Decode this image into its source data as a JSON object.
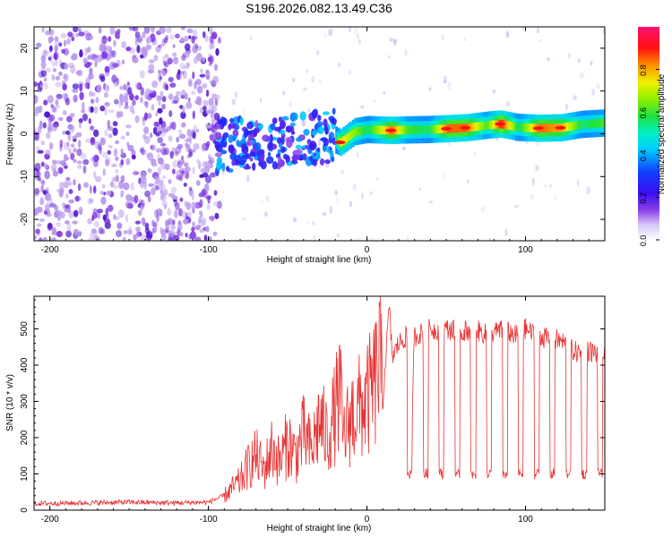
{
  "title": "S196.2026.082.13.49.C36",
  "colors": {
    "snr_line": "#e83232",
    "spec_weak": "#b898ec",
    "spec_mid": "#7a2ee0",
    "spec_strong": "#4a10cc"
  },
  "chart_data": [
    {
      "type": "heatmap",
      "title": "S196.2026.082.13.49.C36",
      "xlabel": "Height of straight line (km)",
      "ylabel": "Frequency (Hz)",
      "xlim": [
        -210,
        150
      ],
      "ylim": [
        -25,
        25
      ],
      "xticks": [
        -200,
        -100,
        0,
        100
      ],
      "yticks": [
        -20,
        -10,
        0,
        10,
        20
      ],
      "colorbar": {
        "label": "Normalized spectral amplitude",
        "range": [
          0,
          1
        ],
        "ticks": [
          0.0,
          0.2,
          0.4,
          0.6,
          0.8
        ],
        "tick_labels": [
          "0.0",
          "0.2",
          "0.4",
          "0.6",
          "0.8"
        ],
        "colormap": "rainbow (white → violet → blue → cyan → green → yellow → red → magenta)"
      },
      "ridge": [
        {
          "x": -95,
          "y": -3.0,
          "amp": 0.15
        },
        {
          "x": -80,
          "y": -4.0,
          "amp": 0.22
        },
        {
          "x": -70,
          "y": -5.0,
          "amp": 0.25
        },
        {
          "x": -60,
          "y": -3.5,
          "amp": 0.28
        },
        {
          "x": -50,
          "y": -2.0,
          "amp": 0.3
        },
        {
          "x": -40,
          "y": -1.0,
          "amp": 0.32
        },
        {
          "x": -30,
          "y": 0.0,
          "amp": 0.35
        },
        {
          "x": -20,
          "y": -1.5,
          "amp": 0.55
        },
        {
          "x": -17,
          "y": -2.0,
          "amp": 0.75
        },
        {
          "x": -8,
          "y": 0.5,
          "amp": 0.65
        },
        {
          "x": 0,
          "y": 1.0,
          "amp": 0.55
        },
        {
          "x": 15,
          "y": 0.8,
          "amp": 0.85
        },
        {
          "x": 25,
          "y": 0.9,
          "amp": 0.6
        },
        {
          "x": 38,
          "y": 1.0,
          "amp": 0.55
        },
        {
          "x": 50,
          "y": 1.2,
          "amp": 0.85
        },
        {
          "x": 62,
          "y": 1.4,
          "amp": 0.85
        },
        {
          "x": 75,
          "y": 2.0,
          "amp": 0.6
        },
        {
          "x": 84,
          "y": 2.3,
          "amp": 0.9
        },
        {
          "x": 95,
          "y": 1.5,
          "amp": 0.55
        },
        {
          "x": 108,
          "y": 1.3,
          "amp": 0.85
        },
        {
          "x": 122,
          "y": 1.4,
          "amp": 0.8
        },
        {
          "x": 135,
          "y": 2.2,
          "amp": 0.55
        },
        {
          "x": 148,
          "y": 2.5,
          "amp": 0.6
        }
      ]
    },
    {
      "type": "line",
      "xlabel": "Height of straight line (km)",
      "ylabel": "SNR (10 * v/v)",
      "xlim": [
        -210,
        150
      ],
      "ylim": [
        0,
        590
      ],
      "xticks": [
        -200,
        -100,
        0,
        100
      ],
      "yticks": [
        0,
        100,
        200,
        300,
        400,
        500
      ],
      "series": [
        {
          "name": "SNR",
          "x": [
            -210,
            -180,
            -150,
            -120,
            -100,
            -90,
            -80,
            -75,
            -70,
            -65,
            -60,
            -55,
            -50,
            -45,
            -40,
            -35,
            -30,
            -25,
            -20,
            -17,
            -15,
            -10,
            -5,
            0,
            5,
            8,
            10,
            12,
            14,
            16,
            20,
            25,
            27,
            30,
            35,
            40,
            45,
            50,
            55,
            60,
            65,
            70,
            75,
            80,
            85,
            90,
            95,
            100,
            105,
            110,
            115,
            120,
            125,
            130,
            135,
            140,
            145,
            150
          ],
          "y": [
            18,
            20,
            22,
            20,
            22,
            40,
            80,
            120,
            150,
            110,
            170,
            130,
            190,
            150,
            210,
            160,
            250,
            200,
            270,
            330,
            200,
            260,
            280,
            300,
            350,
            420,
            300,
            430,
            560,
            420,
            460,
            480,
            100,
            480,
            490,
            500,
            495,
            500,
            495,
            490,
            500,
            495,
            485,
            490,
            495,
            490,
            480,
            500,
            485,
            480,
            470,
            470,
            460,
            440,
            430,
            440,
            430,
            420
          ]
        }
      ],
      "notches": {
        "x": [
          27,
          37,
          47,
          57,
          67,
          77,
          87,
          97,
          107,
          117,
          127,
          137,
          147
        ],
        "low_value": 100
      }
    }
  ]
}
